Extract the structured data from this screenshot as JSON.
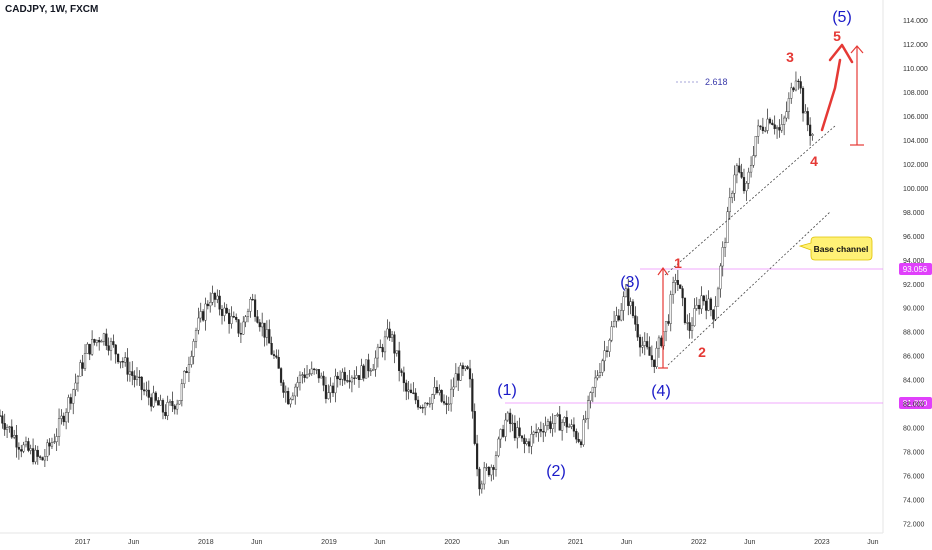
{
  "header": {
    "symbol_line": "CADJPY, 1W, FXCM"
  },
  "chart_data": {
    "type": "candlestick",
    "symbol": "CADJPY",
    "timeframe": "1W",
    "source": "FXCM",
    "y_axis": {
      "ticks": [
        "72.000",
        "74.000",
        "76.000",
        "78.000",
        "80.000",
        "82.000",
        "84.000",
        "86.000",
        "88.000",
        "90.000",
        "92.000",
        "94.000",
        "96.000",
        "98.000",
        "100.000",
        "102.000",
        "104.000",
        "106.000",
        "108.000",
        "110.000",
        "112.000",
        "114.000"
      ],
      "range": [
        71.2,
        115.6
      ]
    },
    "x_axis": {
      "ticks": [
        "2017",
        "Jun",
        "2018",
        "Jun",
        "2019",
        "Jun",
        "2020",
        "Jun",
        "2021",
        "Jun",
        "2022",
        "Jun",
        "2023",
        "Jun"
      ],
      "range": [
        "2016-05",
        "2023-07"
      ]
    },
    "price_labels": [
      {
        "value": "93.056",
        "color": "#e040fb"
      },
      {
        "value": "81.880",
        "color": "#e040fb"
      }
    ],
    "price_path": [
      [
        "2016-05-01",
        81.0
      ],
      [
        "2016-07-01",
        78.5
      ],
      [
        "2016-09-01",
        77.2
      ],
      [
        "2016-10-15",
        79.5
      ],
      [
        "2016-12-01",
        83.0
      ],
      [
        "2017-01-15",
        86.5
      ],
      [
        "2017-03-01",
        87.8
      ],
      [
        "2017-05-01",
        85.5
      ],
      [
        "2017-07-01",
        83.0
      ],
      [
        "2017-09-01",
        81.3
      ],
      [
        "2017-10-15",
        82.5
      ],
      [
        "2017-12-01",
        88.0
      ],
      [
        "2018-01-15",
        91.0
      ],
      [
        "2018-03-01",
        89.5
      ],
      [
        "2018-04-15",
        88.0
      ],
      [
        "2018-05-15",
        90.8
      ],
      [
        "2018-07-01",
        87.5
      ],
      [
        "2018-09-01",
        82.5
      ],
      [
        "2018-10-15",
        84.5
      ],
      [
        "2018-12-01",
        84.5
      ],
      [
        "2019-01-01",
        82.5
      ],
      [
        "2019-02-01",
        84.5
      ],
      [
        "2019-04-01",
        84.5
      ],
      [
        "2019-05-15",
        85.5
      ],
      [
        "2019-07-01",
        88.0
      ],
      [
        "2019-08-15",
        83.0
      ],
      [
        "2019-10-01",
        82.0
      ],
      [
        "2019-11-15",
        83.0
      ],
      [
        "2019-12-15",
        81.5
      ],
      [
        "2020-01-15",
        84.5
      ],
      [
        "2020-02-20",
        84.5
      ],
      [
        "2020-03-20",
        75.5
      ],
      [
        "2020-05-01",
        77.0
      ],
      [
        "2020-06-10",
        80.8
      ],
      [
        "2020-08-01",
        78.5
      ],
      [
        "2020-10-01",
        80.3
      ],
      [
        "2020-12-01",
        80.5
      ],
      [
        "2021-01-15",
        79.0
      ],
      [
        "2021-03-01",
        84.0
      ],
      [
        "2021-04-15",
        88.0
      ],
      [
        "2021-06-01",
        91.2
      ],
      [
        "2021-07-15",
        87.0
      ],
      [
        "2021-08-20",
        85.5
      ],
      [
        "2021-10-01",
        89.0
      ],
      [
        "2021-10-25",
        92.8
      ],
      [
        "2021-12-01",
        88.0
      ],
      [
        "2022-01-10",
        91.0
      ],
      [
        "2022-02-15",
        89.5
      ],
      [
        "2022-03-15",
        95.0
      ],
      [
        "2022-04-20",
        102.0
      ],
      [
        "2022-05-20",
        99.5
      ],
      [
        "2022-06-20",
        104.5
      ],
      [
        "2022-08-01",
        106.0
      ],
      [
        "2022-09-01",
        104.5
      ],
      [
        "2022-10-20",
        110.0
      ],
      [
        "2022-11-10",
        106.0
      ],
      [
        "2022-12-01",
        104.5
      ]
    ],
    "annotations": {
      "blue_waves": [
        "(1)",
        "(2)",
        "(3)",
        "(4)",
        "(5)"
      ],
      "red_waves": [
        "1",
        "2",
        "3",
        "4",
        "5"
      ],
      "fib_label": "2.618",
      "callout": "Base channel"
    }
  }
}
